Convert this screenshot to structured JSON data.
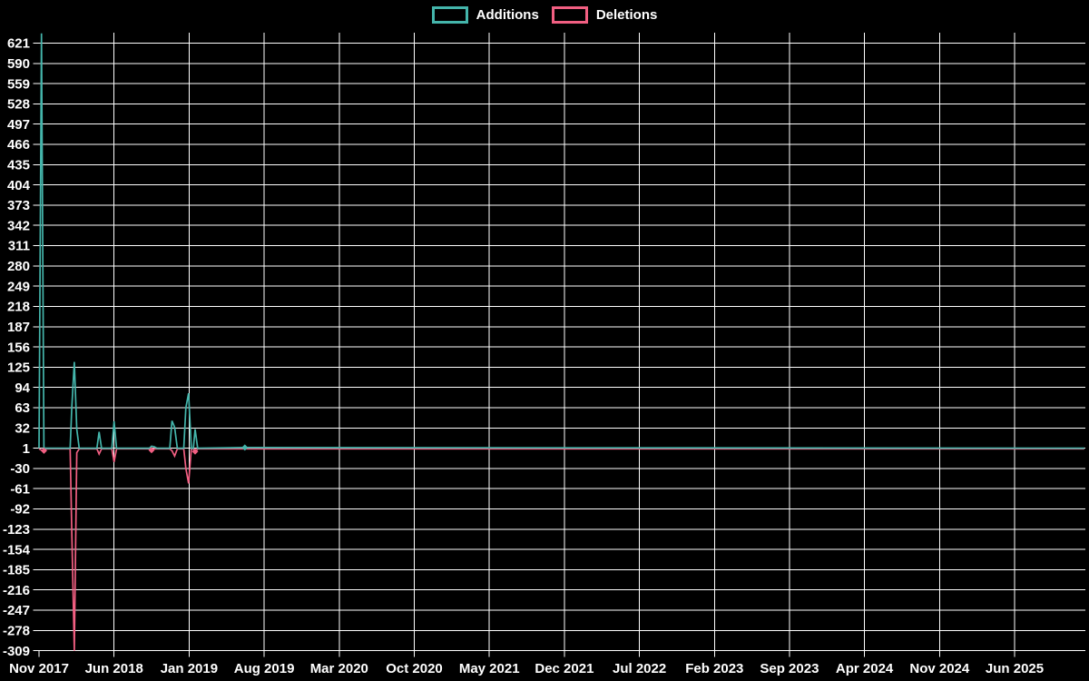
{
  "chart_data": {
    "type": "line",
    "title": "",
    "legend_position": "top-center",
    "background_color": "#000000",
    "grid_color": "#ffffff",
    "text_color": "#ffffff",
    "grid": true,
    "series": [
      {
        "name": "Additions",
        "color": "#44b5ab"
      },
      {
        "name": "Deletions",
        "color": "#f25f82"
      }
    ],
    "y_ticks": [
      621,
      590,
      559,
      528,
      497,
      466,
      435,
      404,
      373,
      342,
      311,
      280,
      249,
      218,
      187,
      156,
      125,
      94,
      63,
      32,
      1,
      -30,
      -61,
      -92,
      -123,
      -154,
      -185,
      -216,
      -247,
      -278,
      -309
    ],
    "ylim": [
      -309,
      637
    ],
    "x_tick_labels": [
      "Nov 2017",
      "Jun 2018",
      "Jan 2019",
      "Aug 2019",
      "Mar 2020",
      "Oct 2020",
      "May 2021",
      "Dec 2021",
      "Jul 2022",
      "Feb 2023",
      "Sep 2023",
      "Apr 2024",
      "Nov 2024",
      "Jun 2025"
    ],
    "x_tick_month_step": 7,
    "xlim_months": [
      0,
      97.6
    ],
    "points": [
      {
        "m": 0.0,
        "a": 1,
        "d": 0
      },
      {
        "m": 0.23,
        "a": 636,
        "d": -2
      },
      {
        "m": 0.46,
        "a": 1,
        "d": -3,
        "dm": true
      },
      {
        "m": 0.7,
        "a": 1,
        "d": 0
      },
      {
        "m": 2.9,
        "a": 1,
        "d": 0
      },
      {
        "m": 3.06,
        "a": 63,
        "d": -127
      },
      {
        "m": 3.29,
        "a": 133,
        "d": -309
      },
      {
        "m": 3.52,
        "a": 30,
        "d": -6
      },
      {
        "m": 3.75,
        "a": 1,
        "d": 0
      },
      {
        "m": 5.4,
        "a": 1,
        "d": 0
      },
      {
        "m": 5.6,
        "a": 26,
        "d": -8
      },
      {
        "m": 5.83,
        "a": 1,
        "d": 0
      },
      {
        "m": 6.8,
        "a": 1,
        "d": 0
      },
      {
        "m": 7.0,
        "a": 42,
        "d": -20
      },
      {
        "m": 7.23,
        "a": 1,
        "d": 0
      },
      {
        "m": 10.3,
        "a": 1,
        "d": 0
      },
      {
        "m": 10.5,
        "a": 4,
        "d": -2,
        "dm": true
      },
      {
        "m": 10.75,
        "a": 3,
        "d": 0
      },
      {
        "m": 11.0,
        "a": 1,
        "d": 0
      },
      {
        "m": 12.2,
        "a": 1,
        "d": 0
      },
      {
        "m": 12.4,
        "a": 43,
        "d": -3
      },
      {
        "m": 12.65,
        "a": 33,
        "d": -11
      },
      {
        "m": 12.9,
        "a": 1,
        "d": 0
      },
      {
        "m": 13.5,
        "a": 1,
        "d": 0
      },
      {
        "m": 13.7,
        "a": 63,
        "d": -30
      },
      {
        "m": 13.95,
        "a": 85,
        "d": -53
      },
      {
        "m": 14.2,
        "a": 1,
        "d": 0
      },
      {
        "m": 14.4,
        "a": 1,
        "d": 0
      },
      {
        "m": 14.56,
        "a": 30,
        "d": -4,
        "dm": true
      },
      {
        "m": 14.8,
        "a": 1,
        "d": 0
      },
      {
        "m": 19.2,
        "a": 2,
        "d": 0,
        "am": true
      },
      {
        "m": 97.5,
        "a": 1,
        "d": 0
      }
    ]
  }
}
